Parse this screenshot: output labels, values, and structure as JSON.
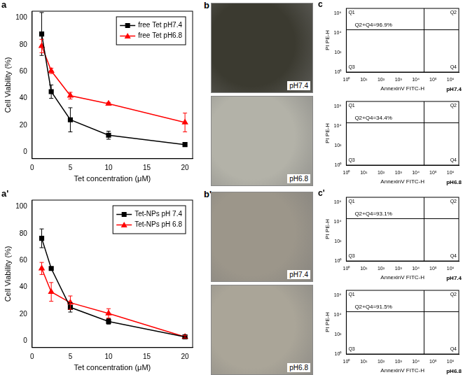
{
  "chart_data": [
    {
      "panel_label": "a",
      "type": "line",
      "x_label": "Tet concentration (μM)",
      "y_label": "Cell Viability (%)",
      "x": [
        1.25,
        2.5,
        5,
        10,
        20
      ],
      "series": [
        {
          "name": "free Tet pH7.4",
          "color": "#000000",
          "marker": "square",
          "values": [
            88,
            45,
            24,
            12.5,
            5.5
          ],
          "errors": [
            16,
            5,
            9,
            3,
            1
          ]
        },
        {
          "name": "free Tet pH6.8",
          "color": "#ff0000",
          "marker": "triangle",
          "values": [
            79,
            60.5,
            42,
            36,
            22
          ],
          "errors": [
            5,
            2,
            2.5,
            1,
            7
          ]
        }
      ],
      "xlim": [
        0,
        21
      ],
      "xticks": [
        0,
        5,
        10,
        15,
        20
      ],
      "ylim": [
        -5,
        105
      ],
      "yticks": [
        0,
        20,
        40,
        60,
        80,
        100
      ],
      "grid": false,
      "legend": "upper right"
    },
    {
      "panel_label": "c",
      "type": "scatter",
      "condition": "pH7.4",
      "annotation": "Q2+Q4=96.9%",
      "x_label": "AnnexinV FITC-H",
      "y_label": "PI PE-H",
      "quadrants": [
        "Q1",
        "Q2",
        "Q3",
        "Q4"
      ],
      "quadrant_gate": {
        "x": 30000,
        "y": 20000
      },
      "log": true,
      "xlim": [
        1,
        3000000
      ],
      "xticks": [
        {
          "value": 1,
          "label": "10⁰"
        },
        {
          "value": 10,
          "label": "10¹"
        },
        {
          "value": 100,
          "label": "10²"
        },
        {
          "value": 1000,
          "label": "10³"
        },
        {
          "value": 10000,
          "label": "10⁴"
        },
        {
          "value": 100000,
          "label": "10⁵"
        },
        {
          "value": 1000000,
          "label": "10⁶"
        }
      ],
      "ylim": [
        1,
        3000000
      ],
      "yticks": [
        {
          "value": 1,
          "label": "10⁰"
        },
        {
          "value": 100,
          "label": "10²"
        },
        {
          "value": 10000,
          "label": "10⁴"
        },
        {
          "value": 1000000,
          "label": "10⁶"
        }
      ],
      "grid": false
    },
    {
      "type": "scatter",
      "condition": "pH6.8",
      "annotation": "Q2+Q4=34.4%",
      "x_label": "AnnexinV FITC-H",
      "y_label": "PI PE-H",
      "quadrants": [
        "Q1",
        "Q2",
        "Q3",
        "Q4"
      ],
      "quadrant_gate": {
        "x": 30000,
        "y": 20000
      },
      "log": true,
      "xlim": [
        1,
        3000000
      ],
      "xticks": [
        {
          "value": 1,
          "label": "10⁰"
        },
        {
          "value": 10,
          "label": "10¹"
        },
        {
          "value": 100,
          "label": "10²"
        },
        {
          "value": 1000,
          "label": "10³"
        },
        {
          "value": 10000,
          "label": "10⁴"
        },
        {
          "value": 100000,
          "label": "10⁵"
        },
        {
          "value": 1000000,
          "label": "10⁶"
        }
      ],
      "ylim": [
        1,
        3000000
      ],
      "yticks": [
        {
          "value": 1,
          "label": "10⁰"
        },
        {
          "value": 100,
          "label": "10²"
        },
        {
          "value": 10000,
          "label": "10⁴"
        },
        {
          "value": 1000000,
          "label": "10⁶"
        }
      ],
      "grid": false
    },
    {
      "panel_label": "a'",
      "type": "line",
      "x_label": "Tet concentration (μM)",
      "y_label": "Cell Viability (%)",
      "x": [
        1.25,
        2.5,
        5,
        10,
        20
      ],
      "series": [
        {
          "name": "Tet-NPs pH 7.4",
          "color": "#000000",
          "marker": "square",
          "values": [
            76.5,
            54,
            25,
            14.5,
            3
          ],
          "errors": [
            7,
            1,
            3.5,
            2,
            1
          ]
        },
        {
          "name": "Tet-NPs pH 6.8",
          "color": "#ff0000",
          "marker": "triangle",
          "values": [
            54,
            36.5,
            28.5,
            20.5,
            3
          ],
          "errors": [
            4.5,
            7,
            5,
            3.5,
            1
          ]
        }
      ],
      "xlim": [
        0,
        21
      ],
      "xticks": [
        0,
        5,
        10,
        15,
        20
      ],
      "ylim": [
        -5,
        105
      ],
      "yticks": [
        0,
        20,
        40,
        60,
        80,
        100
      ],
      "grid": false,
      "legend": "upper right"
    },
    {
      "panel_label": "c'",
      "type": "scatter",
      "condition": "pH7.4",
      "annotation": "Q2+Q4=93.1%",
      "x_label": "AnnexinV FITC-H",
      "y_label": "PI PE-H",
      "quadrants": [
        "Q1",
        "Q2",
        "Q3",
        "Q4"
      ],
      "quadrant_gate": {
        "x": 30000,
        "y": 20000
      },
      "log": true,
      "xlim": [
        1,
        3000000
      ],
      "xticks": [
        {
          "value": 1,
          "label": "10⁰"
        },
        {
          "value": 10,
          "label": "10¹"
        },
        {
          "value": 100,
          "label": "10²"
        },
        {
          "value": 1000,
          "label": "10³"
        },
        {
          "value": 10000,
          "label": "10⁴"
        },
        {
          "value": 100000,
          "label": "10⁵"
        },
        {
          "value": 1000000,
          "label": "10⁶"
        }
      ],
      "ylim": [
        1,
        3000000
      ],
      "yticks": [
        {
          "value": 1,
          "label": "10⁰"
        },
        {
          "value": 100,
          "label": "10²"
        },
        {
          "value": 10000,
          "label": "10⁴"
        },
        {
          "value": 1000000,
          "label": "10⁶"
        }
      ],
      "grid": false
    },
    {
      "type": "scatter",
      "condition": "pH6.8",
      "annotation": "Q2+Q4=91.5%",
      "x_label": "AnnexinV FITC-H",
      "y_label": "PI PE-H",
      "quadrants": [
        "Q1",
        "Q2",
        "Q3",
        "Q4"
      ],
      "quadrant_gate": {
        "x": 30000,
        "y": 20000
      },
      "log": true,
      "xlim": [
        1,
        3000000
      ],
      "xticks": [
        {
          "value": 1,
          "label": "10⁰"
        },
        {
          "value": 10,
          "label": "10¹"
        },
        {
          "value": 100,
          "label": "10²"
        },
        {
          "value": 1000,
          "label": "10³"
        },
        {
          "value": 10000,
          "label": "10⁴"
        },
        {
          "value": 100000,
          "label": "10⁵"
        },
        {
          "value": 1000000,
          "label": "10⁶"
        }
      ],
      "ylim": [
        1,
        3000000
      ],
      "yticks": [
        {
          "value": 1,
          "label": "10⁰"
        },
        {
          "value": 100,
          "label": "10²"
        },
        {
          "value": 10000,
          "label": "10⁴"
        },
        {
          "value": 1000000,
          "label": "10⁶"
        }
      ],
      "grid": false
    }
  ],
  "micrographs": [
    {
      "panel_label": "b",
      "images": [
        "pH7.4",
        "pH6.8"
      ]
    },
    {
      "panel_label": "b'",
      "images": [
        "pH7.4",
        "pH6.8"
      ]
    }
  ]
}
